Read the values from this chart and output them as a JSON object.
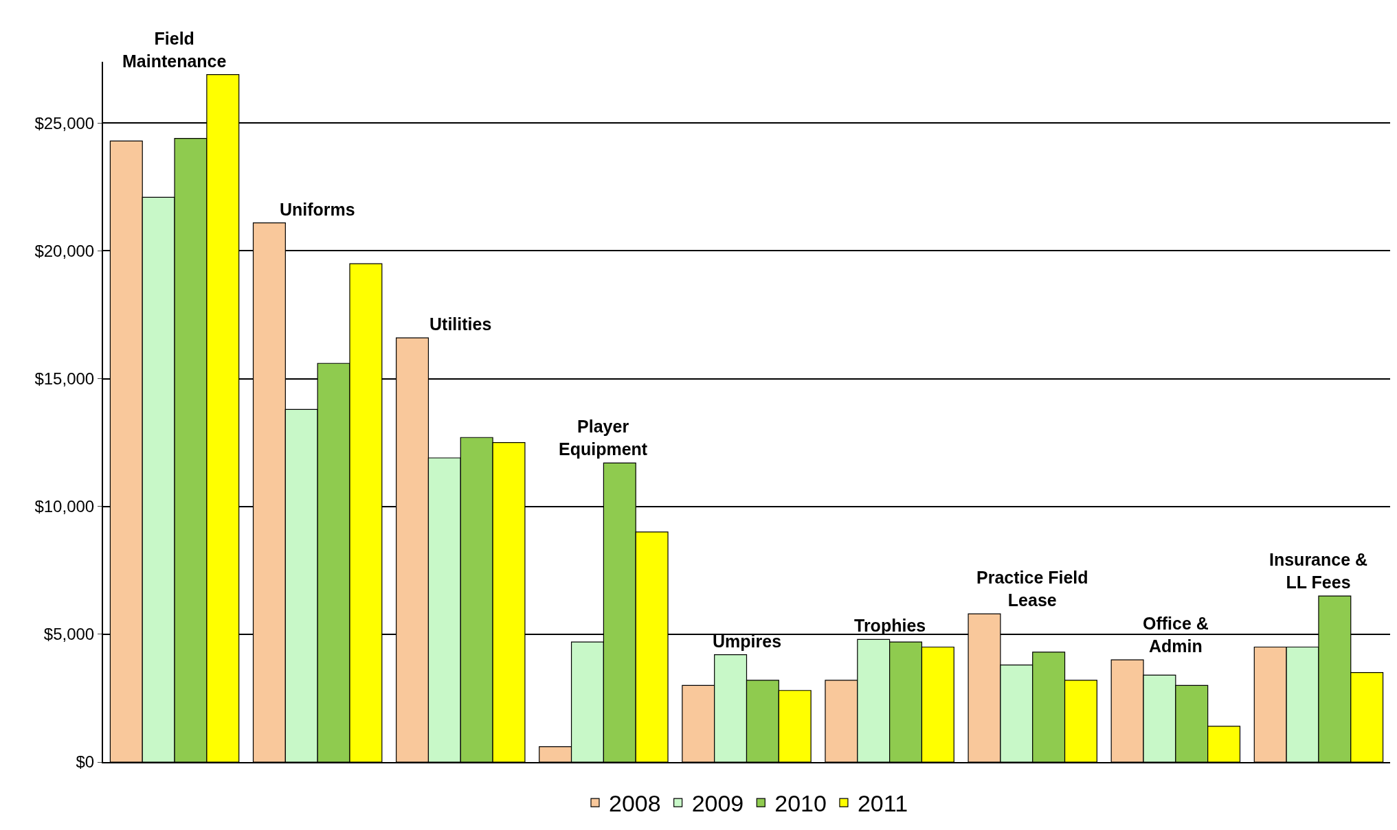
{
  "chart_data": {
    "type": "bar",
    "categories": [
      "Field\nMaintenance",
      "Uniforms",
      "Utilities",
      "Player\nEquipment",
      "Umpires",
      "Trophies",
      "Practice Field\nLease",
      "Office &\nAdmin",
      "Insurance &\nLL Fees"
    ],
    "series": [
      {
        "name": "2008",
        "color": "#f9c89b",
        "values": [
          24300,
          21100,
          16600,
          600,
          3000,
          3200,
          5800,
          4000,
          4500
        ]
      },
      {
        "name": "2009",
        "color": "#c8f8c8",
        "values": [
          22100,
          13800,
          11900,
          4700,
          4200,
          4800,
          3800,
          3400,
          4500
        ]
      },
      {
        "name": "2010",
        "color": "#8fcb4f",
        "values": [
          24400,
          15600,
          12700,
          11700,
          3200,
          4700,
          4300,
          3000,
          6500
        ]
      },
      {
        "name": "2011",
        "color": "#ffff00",
        "values": [
          26900,
          19500,
          12500,
          9000,
          2800,
          4500,
          3200,
          1400,
          3500
        ]
      }
    ],
    "ylim": [
      0,
      27400
    ],
    "yticks": [
      {
        "value": 0,
        "label": "$0"
      },
      {
        "value": 5000,
        "label": "$5,000"
      },
      {
        "value": 10000,
        "label": "$10,000"
      },
      {
        "value": 15000,
        "label": "$15,000"
      },
      {
        "value": 20000,
        "label": "$20,000"
      },
      {
        "value": 25000,
        "label": "$25,000"
      }
    ],
    "grid": "y",
    "legend": "bottom",
    "tick_labels": "y"
  }
}
